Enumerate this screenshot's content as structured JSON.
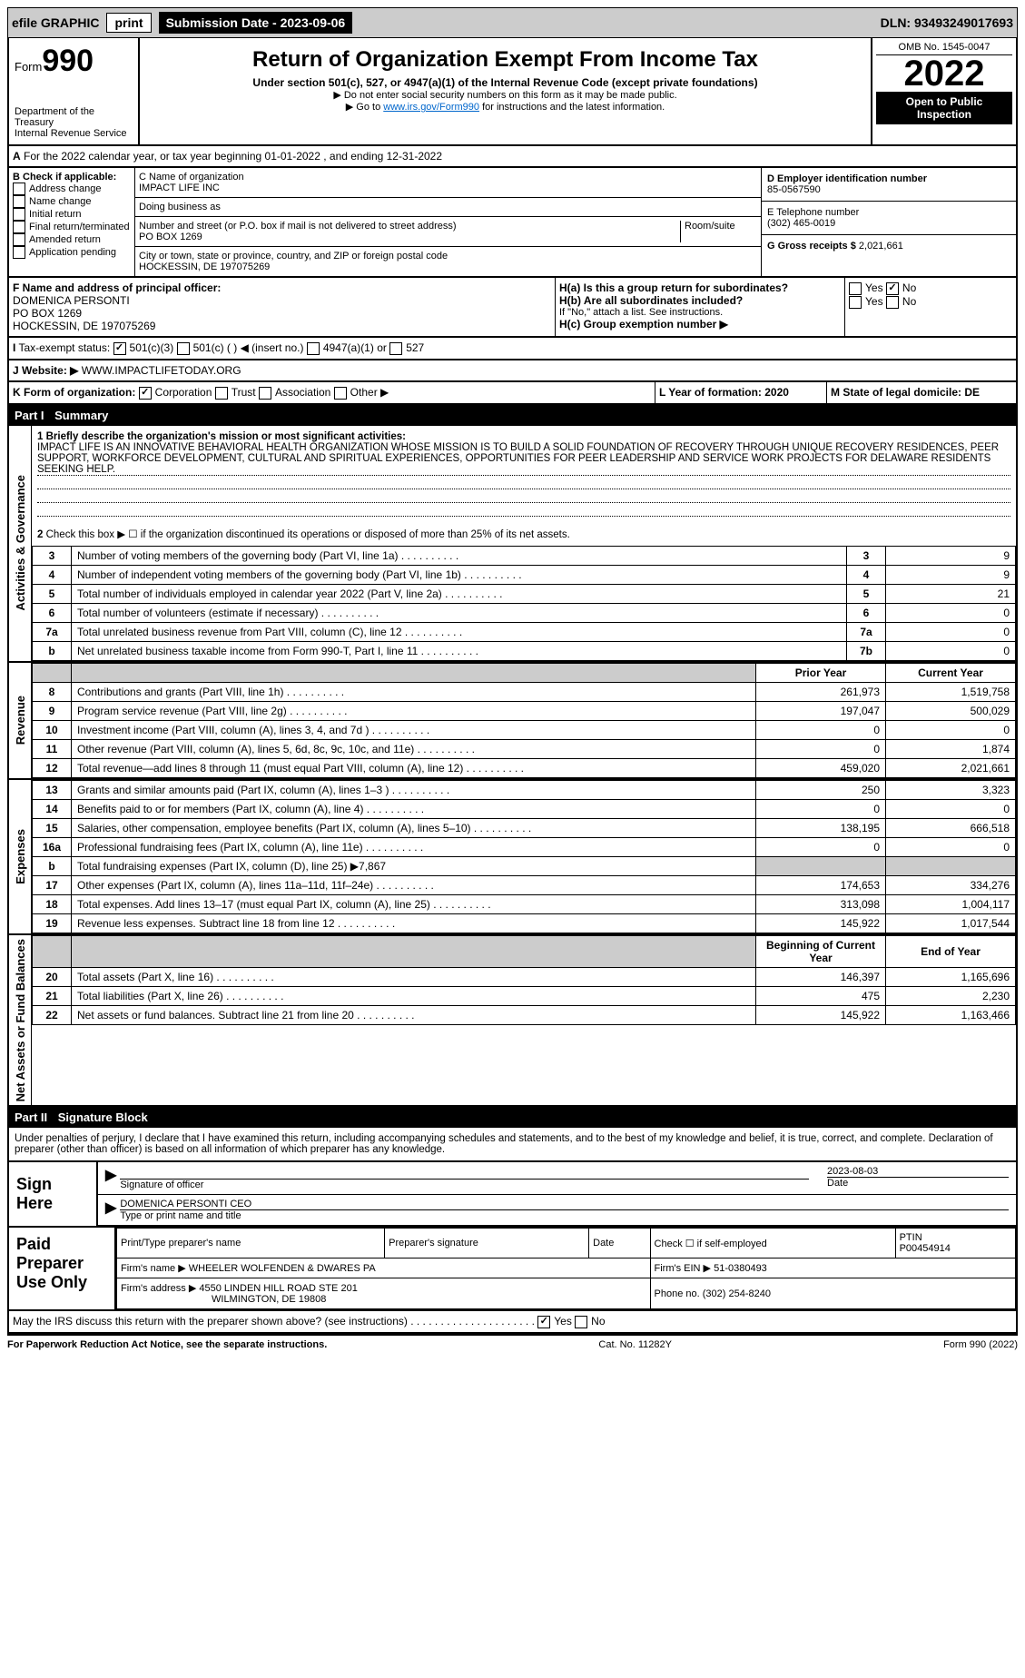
{
  "topbar": {
    "efile": "efile GRAPHIC",
    "print": "print",
    "submission": "Submission Date - 2023-09-06",
    "dln": "DLN: 93493249017693"
  },
  "header": {
    "form": "Form",
    "formnum": "990",
    "title": "Return of Organization Exempt From Income Tax",
    "sub": "Under section 501(c), 527, or 4947(a)(1) of the Internal Revenue Code (except private foundations)",
    "note1": "▶ Do not enter social security numbers on this form as it may be made public.",
    "note2": "▶ Go to ",
    "link": "www.irs.gov/Form990",
    "note3": " for instructions and the latest information.",
    "dept": "Department of the Treasury",
    "irs": "Internal Revenue Service",
    "omb": "OMB No. 1545-0047",
    "year": "2022",
    "open": "Open to Public Inspection"
  },
  "periodA": "For the 2022 calendar year, or tax year beginning 01-01-2022    , and ending 12-31-2022",
  "checkB": {
    "label": "B Check if applicable:",
    "items": [
      "Address change",
      "Name change",
      "Initial return",
      "Final return/terminated",
      "Amended return",
      "Application pending"
    ]
  },
  "entity": {
    "cname_label": "C Name of organization",
    "cname": "IMPACT LIFE INC",
    "dba_label": "Doing business as",
    "street_label": "Number and street (or P.O. box if mail is not delivered to street address)",
    "room_label": "Room/suite",
    "street": "PO BOX 1269",
    "city_label": "City or town, state or province, country, and ZIP or foreign postal code",
    "city": "HOCKESSIN, DE  197075269",
    "d_label": "D Employer identification number",
    "d": "85-0567590",
    "e_label": "E Telephone number",
    "e": "(302) 465-0019",
    "g_label": "G Gross receipts $",
    "g": "2,021,661"
  },
  "sectionF": {
    "f_label": "F  Name and address of principal officer:",
    "f_name": "DOMENICA PERSONTI",
    "f_addr1": "PO BOX 1269",
    "f_addr2": "HOCKESSIN, DE  197075269",
    "ha": "H(a)  Is this a group return for subordinates?",
    "ha_yes": "Yes",
    "ha_no": "No",
    "hb": "H(b)  Are all subordinates included?",
    "hb_note": "If \"No,\" attach a list. See instructions.",
    "hc": "H(c)  Group exemption number ▶"
  },
  "taxstatus": {
    "label": "Tax-exempt status:",
    "o1": "501(c)(3)",
    "o2": "501(c) (   ) ◀ (insert no.)",
    "o3": "4947(a)(1) or",
    "o4": "527"
  },
  "website": {
    "label": "Website: ▶",
    "val": "WWW.IMPACTLIFETODAY.ORG"
  },
  "orgform": {
    "label": "K Form of organization:",
    "o1": "Corporation",
    "o2": "Trust",
    "o3": "Association",
    "o4": "Other ▶",
    "l": "L Year of formation: 2020",
    "m": "M State of legal domicile: DE"
  },
  "part1": {
    "label": "Part I",
    "title": "Summary"
  },
  "mission": {
    "label": "1  Briefly describe the organization's mission or most significant activities:",
    "text": "IMPACT LIFE IS AN INNOVATIVE BEHAVIORAL HEALTH ORGANIZATION WHOSE MISSION IS TO BUILD A SOLID FOUNDATION OF RECOVERY THROUGH UNIQUE RECOVERY RESIDENCES, PEER SUPPORT, WORKFORCE DEVELOPMENT, CULTURAL AND SPIRITUAL EXPERIENCES, OPPORTUNITIES FOR PEER LEADERSHIP AND SERVICE WORK PROJECTS FOR DELAWARE RESIDENTS SEEKING HELP."
  },
  "governance": {
    "side": "Activities & Governance",
    "l2": "Check this box ▶ ☐  if the organization discontinued its operations or disposed of more than 25% of its net assets.",
    "rows": [
      {
        "n": "3",
        "t": "Number of voting members of the governing body (Part VI, line 1a)",
        "box": "3",
        "v": "9"
      },
      {
        "n": "4",
        "t": "Number of independent voting members of the governing body (Part VI, line 1b)",
        "box": "4",
        "v": "9"
      },
      {
        "n": "5",
        "t": "Total number of individuals employed in calendar year 2022 (Part V, line 2a)",
        "box": "5",
        "v": "21"
      },
      {
        "n": "6",
        "t": "Total number of volunteers (estimate if necessary)",
        "box": "6",
        "v": "0"
      },
      {
        "n": "7a",
        "t": "Total unrelated business revenue from Part VIII, column (C), line 12",
        "box": "7a",
        "v": "0"
      },
      {
        "n": "b",
        "t": "Net unrelated business taxable income from Form 990-T, Part I, line 11",
        "box": "7b",
        "v": "0"
      }
    ]
  },
  "revenue": {
    "side": "Revenue",
    "hdr_prior": "Prior Year",
    "hdr_curr": "Current Year",
    "rows": [
      {
        "n": "8",
        "t": "Contributions and grants (Part VIII, line 1h)",
        "p": "261,973",
        "c": "1,519,758"
      },
      {
        "n": "9",
        "t": "Program service revenue (Part VIII, line 2g)",
        "p": "197,047",
        "c": "500,029"
      },
      {
        "n": "10",
        "t": "Investment income (Part VIII, column (A), lines 3, 4, and 7d )",
        "p": "0",
        "c": "0"
      },
      {
        "n": "11",
        "t": "Other revenue (Part VIII, column (A), lines 5, 6d, 8c, 9c, 10c, and 11e)",
        "p": "0",
        "c": "1,874"
      },
      {
        "n": "12",
        "t": "Total revenue—add lines 8 through 11 (must equal Part VIII, column (A), line 12)",
        "p": "459,020",
        "c": "2,021,661"
      }
    ]
  },
  "expenses": {
    "side": "Expenses",
    "rows": [
      {
        "n": "13",
        "t": "Grants and similar amounts paid (Part IX, column (A), lines 1–3 )",
        "p": "250",
        "c": "3,323"
      },
      {
        "n": "14",
        "t": "Benefits paid to or for members (Part IX, column (A), line 4)",
        "p": "0",
        "c": "0"
      },
      {
        "n": "15",
        "t": "Salaries, other compensation, employee benefits (Part IX, column (A), lines 5–10)",
        "p": "138,195",
        "c": "666,518"
      },
      {
        "n": "16a",
        "t": "Professional fundraising fees (Part IX, column (A), line 11e)",
        "p": "0",
        "c": "0"
      },
      {
        "n": "b",
        "t": "Total fundraising expenses (Part IX, column (D), line 25) ▶7,867",
        "p": "",
        "c": "",
        "shade": true
      },
      {
        "n": "17",
        "t": "Other expenses (Part IX, column (A), lines 11a–11d, 11f–24e)",
        "p": "174,653",
        "c": "334,276"
      },
      {
        "n": "18",
        "t": "Total expenses. Add lines 13–17 (must equal Part IX, column (A), line 25)",
        "p": "313,098",
        "c": "1,004,117"
      },
      {
        "n": "19",
        "t": "Revenue less expenses. Subtract line 18 from line 12",
        "p": "145,922",
        "c": "1,017,544"
      }
    ]
  },
  "netassets": {
    "side": "Net Assets or Fund Balances",
    "hdr_beg": "Beginning of Current Year",
    "hdr_end": "End of Year",
    "rows": [
      {
        "n": "20",
        "t": "Total assets (Part X, line 16)",
        "p": "146,397",
        "c": "1,165,696"
      },
      {
        "n": "21",
        "t": "Total liabilities (Part X, line 26)",
        "p": "475",
        "c": "2,230"
      },
      {
        "n": "22",
        "t": "Net assets or fund balances. Subtract line 21 from line 20",
        "p": "145,922",
        "c": "1,163,466"
      }
    ]
  },
  "part2": {
    "label": "Part II",
    "title": "Signature Block"
  },
  "penalty": "Under penalties of perjury, I declare that I have examined this return, including accompanying schedules and statements, and to the best of my knowledge and belief, it is true, correct, and complete. Declaration of preparer (other than officer) is based on all information of which preparer has any knowledge.",
  "sign": {
    "label": "Sign Here",
    "sig_label": "Signature of officer",
    "date_label": "Date",
    "date": "2023-08-03",
    "name": "DOMENICA PERSONTI CEO",
    "name_label": "Type or print name and title"
  },
  "prep": {
    "label": "Paid Preparer Use Only",
    "c1": "Print/Type preparer's name",
    "c2": "Preparer's signature",
    "c3": "Date",
    "c4": "Check ☐ if self-employed",
    "c5": "PTIN",
    "ptin": "P00454914",
    "firm_label": "Firm's name    ▶",
    "firm": "WHEELER WOLFENDEN & DWARES PA",
    "ein_label": "Firm's EIN ▶",
    "ein": "51-0380493",
    "addr_label": "Firm's address ▶",
    "addr1": "4550 LINDEN HILL ROAD STE 201",
    "addr2": "WILMINGTON, DE  19808",
    "phone_label": "Phone no.",
    "phone": "(302) 254-8240"
  },
  "discuss": {
    "q": "May the IRS discuss this return with the preparer shown above? (see instructions)",
    "yes": "Yes",
    "no": "No"
  },
  "footer": {
    "l": "For Paperwork Reduction Act Notice, see the separate instructions.",
    "m": "Cat. No. 11282Y",
    "r": "Form 990 (2022)"
  }
}
